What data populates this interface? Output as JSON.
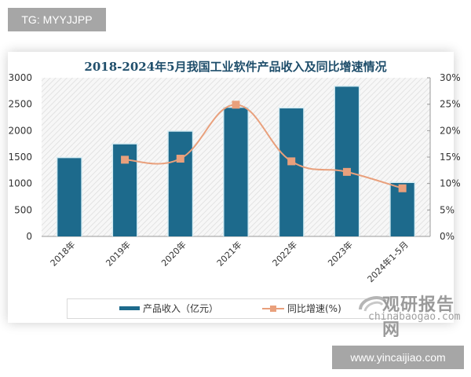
{
  "watermarks": {
    "top": "TG: MYYJJPP",
    "bottom": "www.yincaijiao.com"
  },
  "logo": {
    "name_cn": "观研报告网",
    "name_en": "chinabaogao.com"
  },
  "colors": {
    "bar": "#1d6a8c",
    "line": "#e9a07c",
    "title": "#1f4e6b",
    "axis_text": "#333333"
  },
  "chart_data": {
    "type": "bar+line",
    "title": "2018-2024年5月我国工业软件产品收入及同比增速情况",
    "categories": [
      "2018年",
      "2019年",
      "2020年",
      "2021年",
      "2022年",
      "2023年",
      "2024年1-5月"
    ],
    "series": [
      {
        "name": "产品收入（亿元）",
        "type": "bar",
        "axis": "left",
        "values": [
          1480,
          1740,
          1980,
          2430,
          2420,
          2830,
          1010
        ]
      },
      {
        "name": "同比增速(%)",
        "type": "line",
        "axis": "right",
        "values": [
          null,
          14.5,
          14.7,
          24.9,
          14.2,
          12.2,
          9.1
        ]
      }
    ],
    "left_axis": {
      "ylim": [
        0,
        3000
      ],
      "ticks": [
        "0",
        "500",
        "1000",
        "1500",
        "2000",
        "2500",
        "3000"
      ]
    },
    "right_axis": {
      "ylim": [
        0,
        30
      ],
      "ticks": [
        "0%",
        "5%",
        "10%",
        "15%",
        "20%",
        "25%",
        "30%"
      ]
    },
    "xlabel": "",
    "ylabel": "",
    "grid": false,
    "legend_position": "bottom"
  }
}
